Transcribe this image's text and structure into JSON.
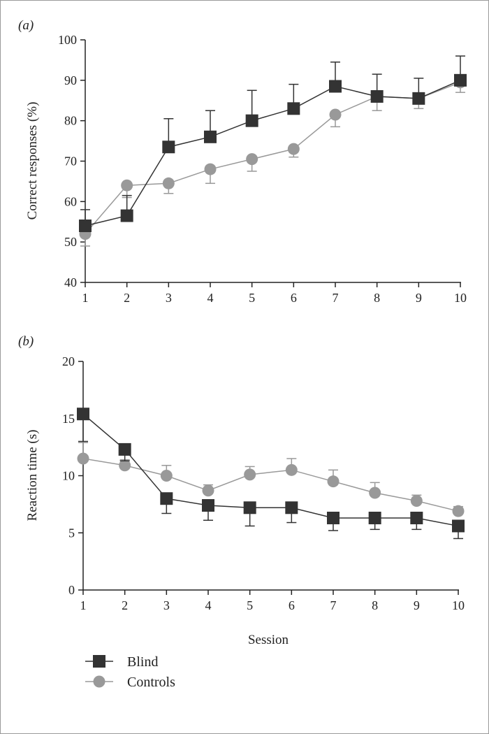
{
  "chart_data": [
    {
      "panel_label": "(a)",
      "type": "line",
      "xlabel": "",
      "ylabel": "Correct responses (%)",
      "x": [
        1,
        2,
        3,
        4,
        5,
        6,
        7,
        8,
        9,
        10
      ],
      "xticks": [
        "1",
        "2",
        "3",
        "4",
        "5",
        "6",
        "7",
        "8",
        "9",
        "10"
      ],
      "ylim": [
        40,
        100
      ],
      "yticks": [
        "40",
        "50",
        "60",
        "70",
        "80",
        "90",
        "100"
      ],
      "error_bars": "one-sided (Blind upward, Controls downward)",
      "grid": false,
      "series": [
        {
          "name": "Blind",
          "color": "#333333",
          "marker": "square",
          "values": [
            54,
            56.5,
            73.5,
            76,
            80,
            83,
            88.5,
            86,
            85.5,
            90
          ],
          "errors": [
            4,
            5,
            7,
            6.5,
            7.5,
            6,
            6,
            5.5,
            5,
            6
          ]
        },
        {
          "name": "Controls",
          "color": "#999999",
          "marker": "circle",
          "values": [
            52,
            64,
            64.5,
            68,
            70.5,
            73,
            81.5,
            86,
            85.5,
            89.5
          ],
          "errors": [
            3,
            3,
            2.5,
            3.5,
            3,
            2,
            3,
            3.5,
            2.5,
            2.5
          ]
        }
      ]
    },
    {
      "panel_label": "(b)",
      "type": "line",
      "xlabel": "Session",
      "ylabel": "Reaction time (s)",
      "x": [
        1,
        2,
        3,
        4,
        5,
        6,
        7,
        8,
        9,
        10
      ],
      "xticks": [
        "1",
        "2",
        "3",
        "4",
        "5",
        "6",
        "7",
        "8",
        "9",
        "10"
      ],
      "ylim": [
        0,
        20
      ],
      "yticks": [
        "0",
        "5",
        "10",
        "15",
        "20"
      ],
      "error_bars": "one-sided (Blind downward, Controls upward)",
      "grid": false,
      "series": [
        {
          "name": "Blind",
          "color": "#333333",
          "marker": "square",
          "values": [
            15.4,
            12.3,
            8.0,
            7.4,
            7.2,
            7.2,
            6.3,
            6.3,
            6.3,
            5.6
          ],
          "errors": [
            2.4,
            1.0,
            1.3,
            1.3,
            1.6,
            1.3,
            1.1,
            1.0,
            1.0,
            1.1
          ]
        },
        {
          "name": "Controls",
          "color": "#999999",
          "marker": "circle",
          "values": [
            11.5,
            10.9,
            10.0,
            8.7,
            10.1,
            10.5,
            9.5,
            8.5,
            7.8,
            6.9
          ],
          "errors": [
            1.4,
            0.5,
            0.9,
            0.5,
            0.7,
            1.0,
            1.0,
            0.9,
            0.5,
            0.4
          ]
        }
      ]
    }
  ],
  "legend": {
    "placement": "bottom-left",
    "entries": [
      {
        "label": "Blind",
        "color": "#333333",
        "marker": "square"
      },
      {
        "label": "Controls",
        "color": "#999999",
        "marker": "circle"
      }
    ]
  }
}
